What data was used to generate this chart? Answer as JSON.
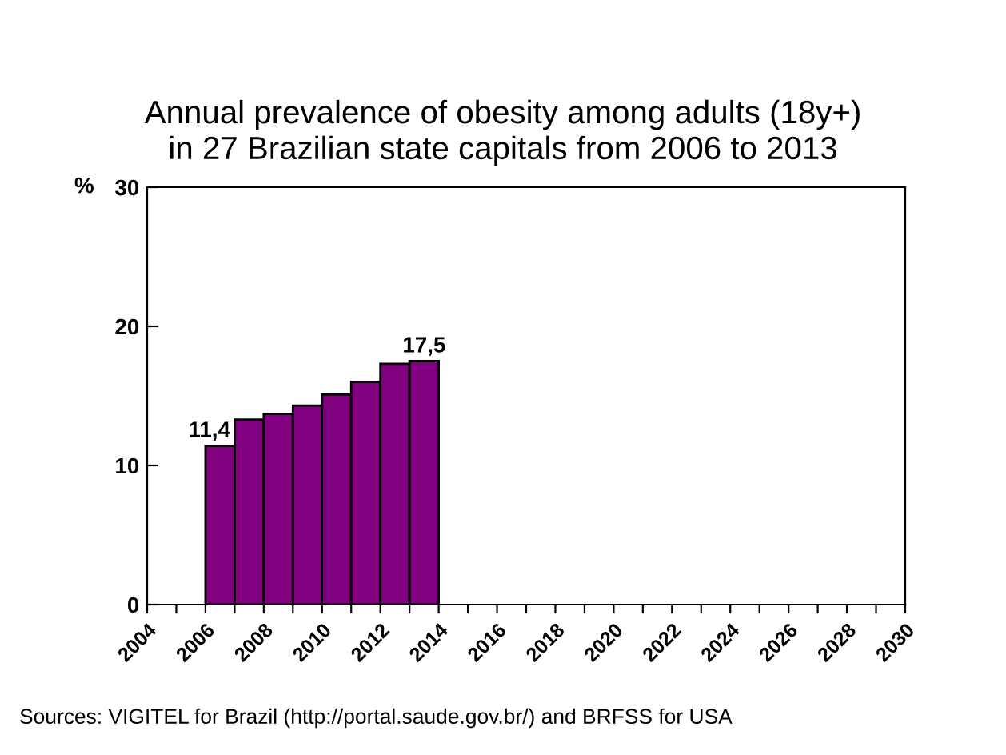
{
  "chart_data": {
    "type": "histogram",
    "title": "Annual prevalence of obesity among adults (18y+)\nin 27 Brazilian state capitals from 2006 to 2013",
    "ylabel": "%",
    "bins": [
      2006,
      2007,
      2008,
      2009,
      2010,
      2011,
      2012,
      2013,
      2014
    ],
    "series": [
      {
        "color": "#800080",
        "values": [
          11.4,
          13.3,
          13.7,
          14.3,
          15.1,
          16.0,
          17.3,
          17.5
        ],
        "value_labels": [
          "11,4",
          null,
          null,
          null,
          null,
          null,
          null,
          "17,5"
        ]
      }
    ],
    "xlim": [
      2004,
      2030
    ],
    "xticks": [
      2004,
      {
        "value": 2005,
        "label": null
      },
      2006,
      {
        "value": 2007,
        "label": null
      },
      2008,
      {
        "value": 2009,
        "label": null
      },
      2010,
      {
        "value": 2011,
        "label": null
      },
      2012,
      {
        "value": 2013,
        "label": null
      },
      2014,
      {
        "value": 2015,
        "label": null
      },
      2016,
      {
        "value": 2017,
        "label": null
      },
      2018,
      {
        "value": 2019,
        "label": null
      },
      2020,
      {
        "value": 2021,
        "label": null
      },
      2022,
      {
        "value": 2023,
        "label": null
      },
      2024,
      {
        "value": 2025,
        "label": null
      },
      2026,
      {
        "value": 2027,
        "label": null
      },
      2028,
      {
        "value": 2029,
        "label": null
      },
      2030
    ],
    "ylim": [
      0,
      30
    ],
    "yticks": [
      0,
      10,
      20,
      30
    ],
    "grid": false,
    "legend": false,
    "annotations": [
      "Sources: VIGITEL for Brazil (http://portal.saude.gov.br/) and BRFSS for USA"
    ]
  }
}
